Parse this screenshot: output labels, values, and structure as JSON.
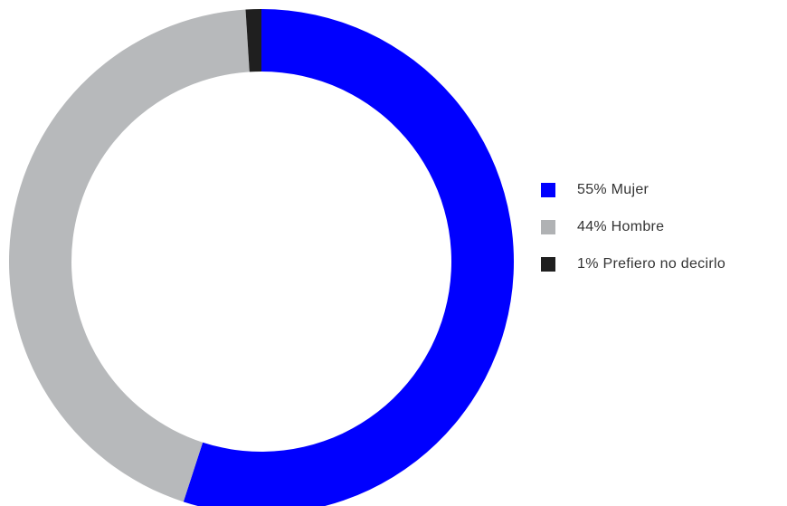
{
  "chart_data": {
    "type": "pie",
    "donut": true,
    "slices": [
      {
        "label": "55% Mujer",
        "value": 55,
        "color": "#0000ff"
      },
      {
        "label": "44% Hombre",
        "value": 44,
        "color": "#b7b9bb"
      },
      {
        "label": "1% Prefiero no decirlo",
        "value": 1,
        "color": "#1f1f1f"
      }
    ],
    "legend_position": "right"
  },
  "legend": {
    "items": [
      {
        "label": "55% Mujer",
        "color": "#0000ff"
      },
      {
        "label": "44% Hombre",
        "color": "#b0b2b4"
      },
      {
        "label": "1% Prefiero no decirlo",
        "color": "#1f1f1f"
      }
    ]
  }
}
